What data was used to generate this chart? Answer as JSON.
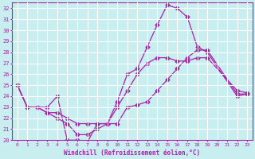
{
  "xlabel": "Windchill (Refroidissement éolien,°C)",
  "bg_color": "#c8eef0",
  "grid_color": "#ffffff",
  "line_color": "#aa22aa",
  "xmin": 0,
  "xmax": 23,
  "ymin": 20,
  "ymax": 32,
  "line1_x": [
    0,
    1,
    2,
    3,
    4,
    5,
    6,
    7,
    8,
    9,
    10,
    11,
    12,
    13,
    14,
    15,
    16,
    17,
    18,
    19,
    22,
    23
  ],
  "line1_y": [
    25,
    23,
    23,
    23,
    24,
    20,
    20,
    19.8,
    21.5,
    21.5,
    23.5,
    26,
    26.5,
    28.5,
    30.5,
    32.3,
    32,
    31.2,
    28.5,
    28,
    24,
    24.2
  ],
  "line2_x": [
    0,
    1,
    2,
    3,
    4,
    5,
    6,
    7,
    8,
    9,
    10,
    11,
    12,
    13,
    14,
    15,
    16,
    17,
    18,
    19,
    22,
    23
  ],
  "line2_y": [
    25,
    23,
    23,
    22.5,
    22.5,
    22,
    21.5,
    21.5,
    21.5,
    21.5,
    21.5,
    23,
    23.2,
    23.5,
    24.5,
    25.5,
    26.5,
    27.5,
    28.2,
    28.2,
    24.2,
    24.2
  ],
  "line3_x": [
    0,
    1,
    2,
    3,
    4,
    5,
    6,
    7,
    8,
    9,
    10,
    11,
    12,
    13,
    14,
    15,
    16,
    17,
    18,
    19,
    22,
    23
  ],
  "line3_y": [
    25,
    23,
    23,
    22.5,
    22,
    21.5,
    20.5,
    20.5,
    21,
    21.5,
    23,
    24.5,
    26,
    27,
    27.5,
    27.5,
    27.2,
    27.2,
    27.5,
    27.5,
    24.5,
    24.3
  ],
  "marker": "D",
  "markersize": 2.5,
  "linewidth": 0.9
}
